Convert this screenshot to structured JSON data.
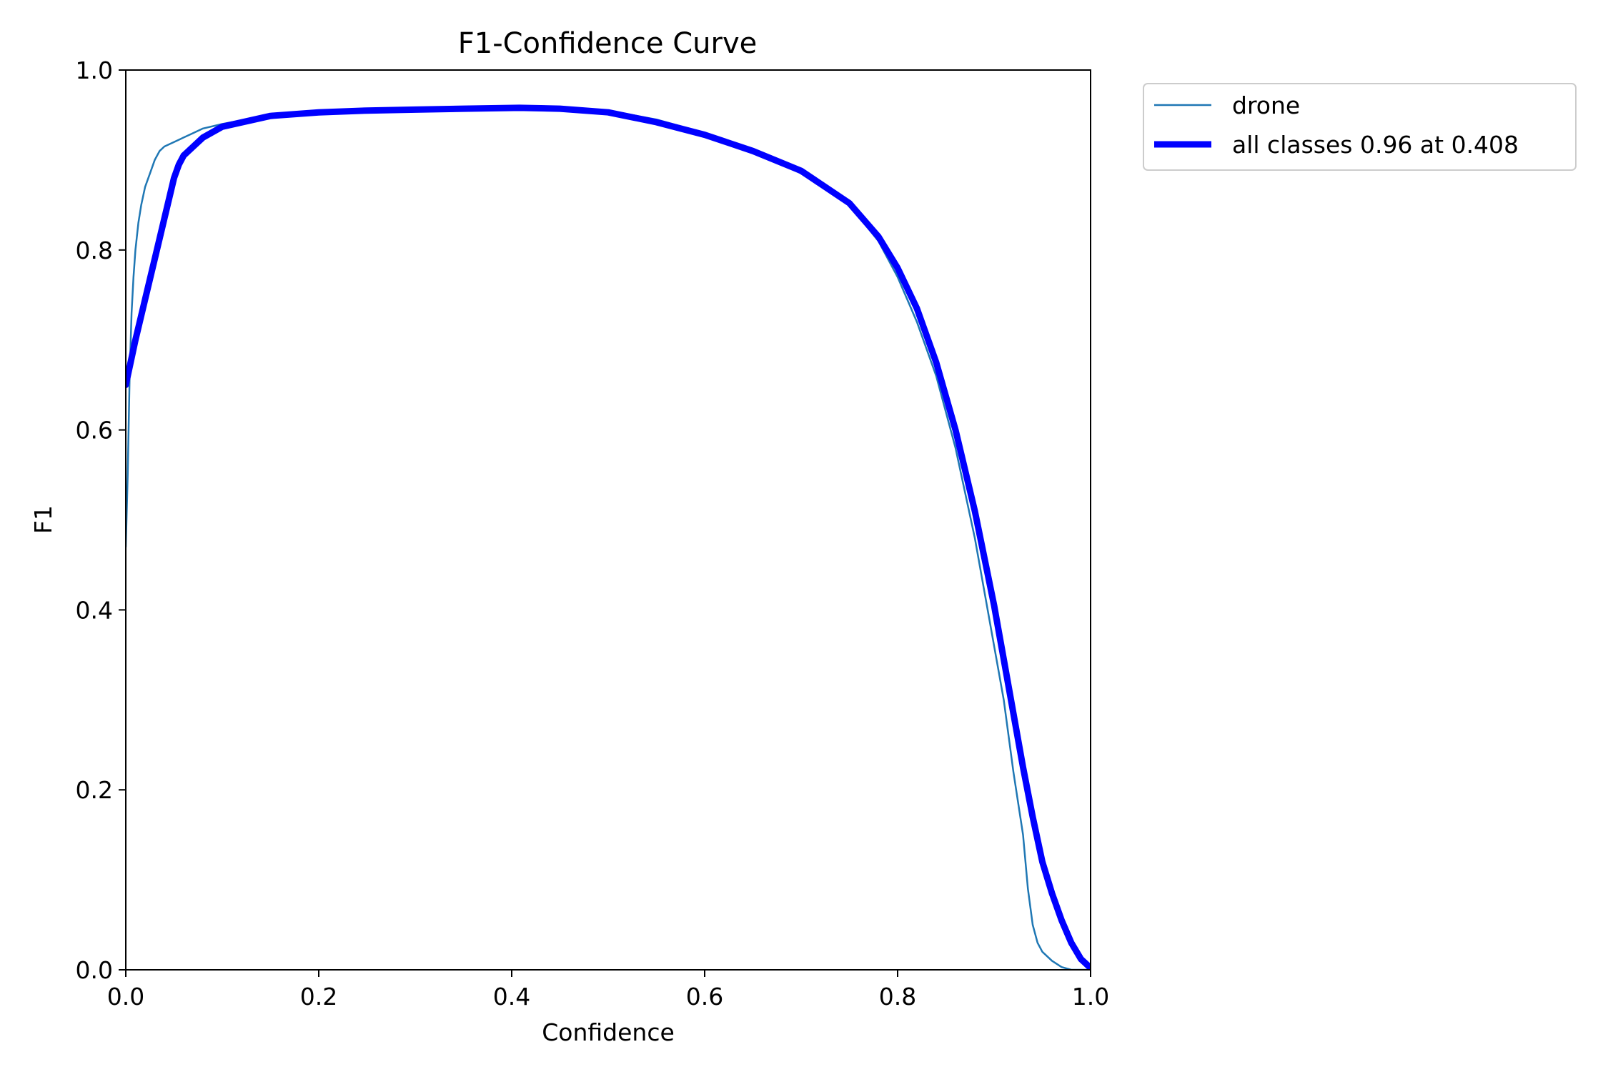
{
  "chart_data": {
    "type": "line",
    "title": "F1-Confidence Curve",
    "xlabel": "Confidence",
    "ylabel": "F1",
    "xlim": [
      0.0,
      1.0
    ],
    "ylim": [
      0.0,
      1.0
    ],
    "xticks": [
      "0.0",
      "0.2",
      "0.4",
      "0.6",
      "0.8",
      "1.0"
    ],
    "yticks": [
      "0.0",
      "0.2",
      "0.4",
      "0.6",
      "0.8",
      "1.0"
    ],
    "grid": false,
    "legend_position": "outside top-right",
    "series": [
      {
        "name": "drone",
        "color": "#1f77b4",
        "x": [
          0.0,
          0.002,
          0.004,
          0.006,
          0.008,
          0.01,
          0.013,
          0.016,
          0.02,
          0.025,
          0.03,
          0.035,
          0.04,
          0.05,
          0.06,
          0.07,
          0.08,
          0.1,
          0.15,
          0.2,
          0.25,
          0.3,
          0.35,
          0.4,
          0.45,
          0.5,
          0.55,
          0.6,
          0.65,
          0.7,
          0.75,
          0.78,
          0.8,
          0.82,
          0.84,
          0.86,
          0.88,
          0.9,
          0.91,
          0.92,
          0.93,
          0.935,
          0.94,
          0.945,
          0.95,
          0.96,
          0.97,
          0.98,
          1.0
        ],
        "y": [
          0.47,
          0.55,
          0.66,
          0.73,
          0.77,
          0.8,
          0.83,
          0.85,
          0.87,
          0.885,
          0.9,
          0.91,
          0.915,
          0.92,
          0.925,
          0.93,
          0.935,
          0.94,
          0.95,
          0.954,
          0.956,
          0.957,
          0.958,
          0.959,
          0.958,
          0.955,
          0.945,
          0.93,
          0.91,
          0.885,
          0.85,
          0.81,
          0.77,
          0.72,
          0.66,
          0.58,
          0.48,
          0.36,
          0.3,
          0.22,
          0.15,
          0.09,
          0.05,
          0.03,
          0.02,
          0.01,
          0.003,
          0.0,
          0.0
        ]
      },
      {
        "name": "all classes 0.96 at 0.408",
        "color": "#0000ff",
        "x": [
          0.0,
          0.01,
          0.02,
          0.03,
          0.04,
          0.05,
          0.055,
          0.06,
          0.07,
          0.08,
          0.1,
          0.15,
          0.2,
          0.25,
          0.3,
          0.35,
          0.408,
          0.45,
          0.5,
          0.55,
          0.6,
          0.65,
          0.7,
          0.75,
          0.78,
          0.8,
          0.82,
          0.84,
          0.86,
          0.88,
          0.9,
          0.91,
          0.92,
          0.93,
          0.94,
          0.95,
          0.96,
          0.97,
          0.98,
          0.99,
          1.0
        ],
        "y": [
          0.65,
          0.7,
          0.745,
          0.79,
          0.835,
          0.88,
          0.895,
          0.905,
          0.915,
          0.925,
          0.937,
          0.949,
          0.953,
          0.955,
          0.956,
          0.957,
          0.958,
          0.957,
          0.953,
          0.942,
          0.928,
          0.91,
          0.888,
          0.852,
          0.815,
          0.78,
          0.735,
          0.675,
          0.6,
          0.51,
          0.405,
          0.345,
          0.285,
          0.225,
          0.17,
          0.12,
          0.085,
          0.055,
          0.03,
          0.012,
          0.002
        ]
      }
    ]
  }
}
